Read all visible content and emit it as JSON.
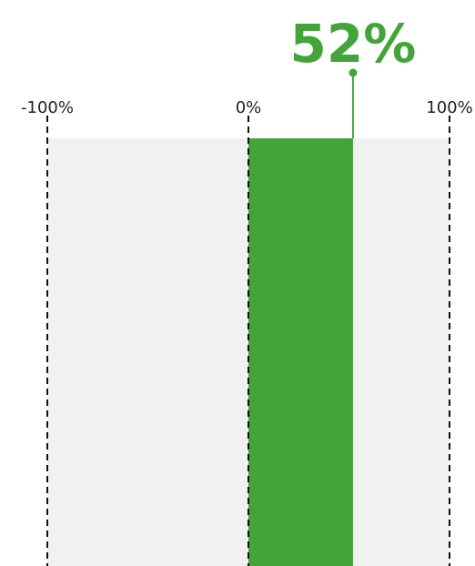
{
  "chart_data": {
    "type": "bar",
    "orientation": "horizontal",
    "xlim": [
      -100,
      100
    ],
    "x_unit": "%",
    "ticks": [
      {
        "value": -100,
        "label": "-100%"
      },
      {
        "value": 0,
        "label": "0%"
      },
      {
        "value": 100,
        "label": "100%"
      }
    ],
    "values": [
      52
    ],
    "value_label": "52%",
    "grid": "dashed vertical lines at ticks",
    "colors": {
      "bar": "#43a539",
      "track": "#f1f1f1",
      "value_label": "#43a539",
      "tick_label": "#222222",
      "gridline": "#111111"
    }
  }
}
